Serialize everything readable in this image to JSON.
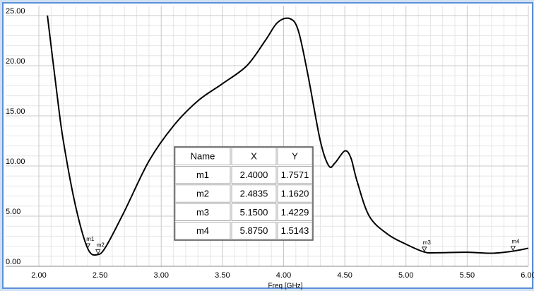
{
  "chart_data": {
    "type": "line",
    "x_label": "Freq [GHz]",
    "x": [
      2.07,
      2.15,
      2.2,
      2.3,
      2.4,
      2.48,
      2.55,
      2.7,
      2.9,
      3.1,
      3.3,
      3.5,
      3.7,
      3.85,
      3.95,
      4.05,
      4.12,
      4.2,
      4.3,
      4.37,
      4.42,
      4.5,
      4.55,
      4.6,
      4.7,
      4.85,
      5.0,
      5.15,
      5.25,
      5.5,
      5.7,
      5.875,
      6.0
    ],
    "series": [
      {
        "color": "#000000",
        "values": [
          25,
          17,
          12.5,
          6,
          1.76,
          1.16,
          2,
          5.5,
          10.5,
          14,
          16.5,
          18.2,
          20,
          22.5,
          24.3,
          24.7,
          23.5,
          19,
          12.5,
          10,
          10.3,
          11.5,
          10.8,
          8.5,
          5,
          3.2,
          2.2,
          1.42,
          1.35,
          1.4,
          1.3,
          1.51,
          1.8
        ]
      }
    ],
    "xlim": [
      2,
      6
    ],
    "ylim": [
      0,
      25
    ],
    "xticks": [
      {
        "value": 2,
        "label": "2.00"
      },
      {
        "value": 2.5,
        "label": "2.50"
      },
      {
        "value": 3,
        "label": "3.00"
      },
      {
        "value": 3.5,
        "label": "3.50"
      },
      {
        "value": 4,
        "label": "4.00"
      },
      {
        "value": 4.5,
        "label": "4.50"
      },
      {
        "value": 5,
        "label": "5.00"
      },
      {
        "value": 5.5,
        "label": "5.50"
      },
      {
        "value": 6,
        "label": "6.00"
      }
    ],
    "yticks": [
      {
        "value": 0,
        "label": "0.00"
      },
      {
        "value": 5,
        "label": "5.00"
      },
      {
        "value": 10,
        "label": "10.00"
      },
      {
        "value": 15,
        "label": "15.00"
      },
      {
        "value": 20,
        "label": "20.00"
      },
      {
        "value": 25,
        "label": "25.00"
      }
    ],
    "grid": true,
    "markers": {
      "header": [
        "Name",
        "X",
        "Y"
      ],
      "names": [
        "m1",
        "m2",
        "m3",
        "m4"
      ],
      "x": [
        2.4,
        2.4835,
        5.15,
        5.875
      ],
      "x_labels": [
        "2.4000",
        "2.4835",
        "5.1500",
        "5.8750"
      ],
      "y": [
        1.7571,
        1.162,
        1.4229,
        1.5143
      ],
      "y_labels": [
        "1.7571",
        "1.1620",
        "1.4229",
        "1.5143"
      ]
    }
  }
}
